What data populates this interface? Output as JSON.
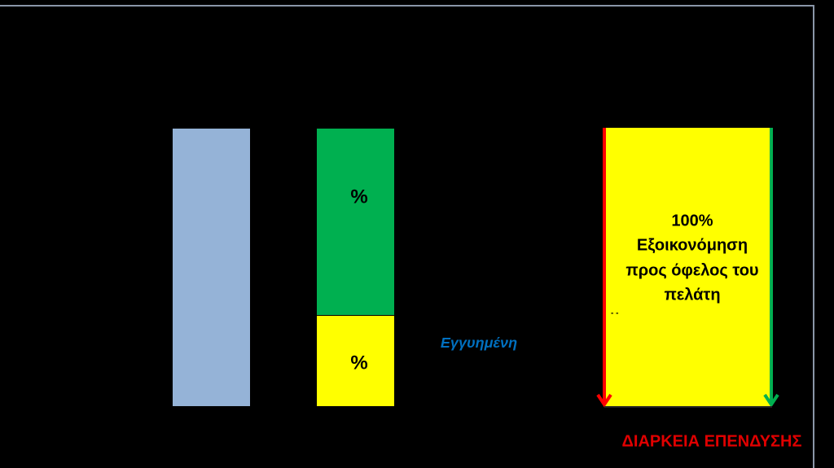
{
  "bars": {
    "green_label": "%",
    "yellow_label": "%"
  },
  "guaranteed_label": "Εγγυημένη",
  "savings_box": {
    "lines": [
      "100%",
      "Εξοικονόμηση",
      "προς όφελος του",
      "πελάτη"
    ]
  },
  "duration_label": "ΔΙΑΡΚΕΙΑ ΕΠΕΝΔΥΣΗΣ"
}
